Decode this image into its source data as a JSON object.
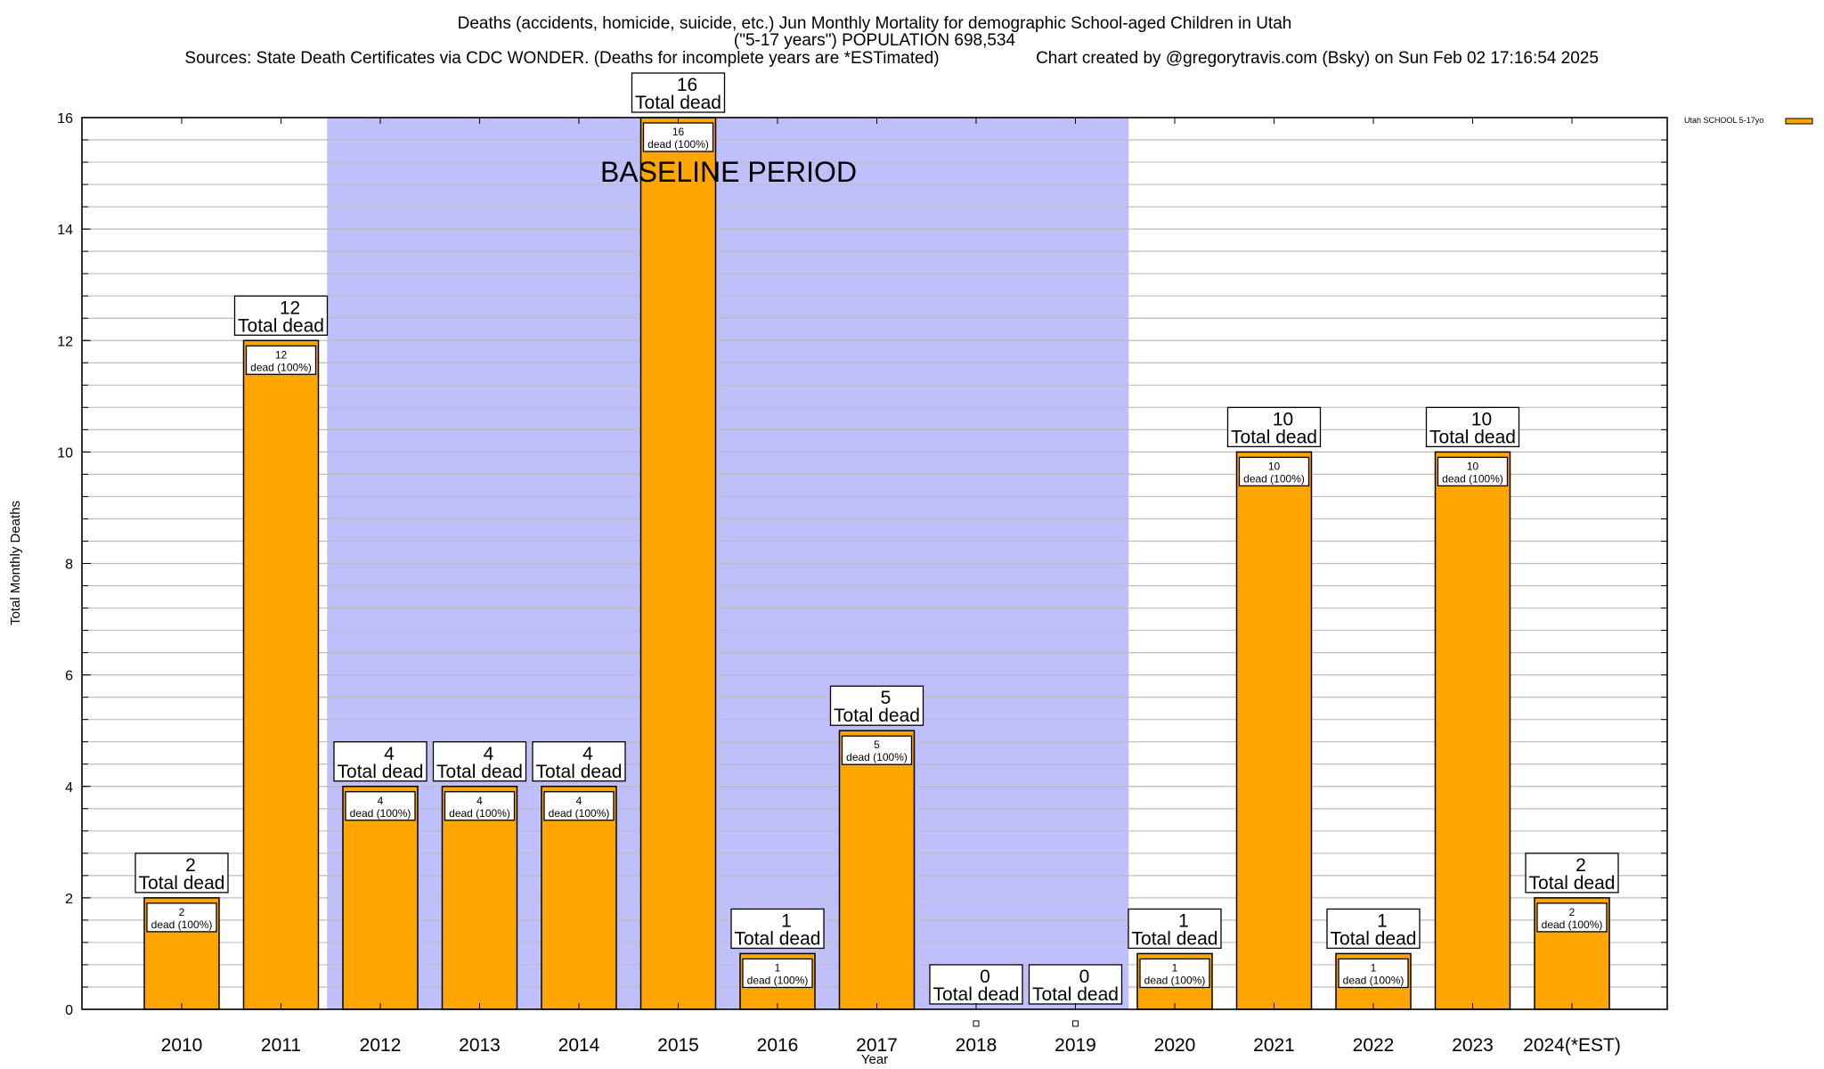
{
  "chart_data": {
    "type": "bar",
    "title_lines": [
      "Deaths (accidents, homicide, suicide, etc.) Jun Monthly Mortality for demographic School-aged Children in Utah",
      "(\"5-17 years\") POPULATION 698,534"
    ],
    "sources": "Sources: State Death Certificates via CDC WONDER. (Deaths for incomplete years are *ESTimated)",
    "credit": "Chart created by @gregorytravis.com (Bsky) on Sun Feb 02 17:16:54 2025",
    "xlabel": "Year",
    "ylabel": "Total Monthly Deaths",
    "ylim": [
      0,
      16
    ],
    "yticks": [
      0,
      2,
      4,
      6,
      8,
      10,
      12,
      14,
      16
    ],
    "minor_grid_step": 0.4,
    "grid": true,
    "categories": [
      "2010",
      "2011",
      "2012",
      "2013",
      "2014",
      "2015",
      "2016",
      "2017",
      "2018",
      "2019",
      "2020",
      "2021",
      "2022",
      "2023",
      "2024(*EST)"
    ],
    "series": [
      {
        "name": "Utah SCHOOL 5-17yo",
        "color": "#ffa500",
        "values": [
          2,
          12,
          4,
          4,
          4,
          16,
          1,
          5,
          0,
          0,
          1,
          10,
          1,
          10,
          2
        ]
      }
    ],
    "total_label_suffix": "Total dead",
    "inner_label_suffix": "dead (100%)",
    "shaded_region": {
      "label": "BASELINE PERIOD",
      "from_category": "2012",
      "to_category": "2019",
      "color": "#bfbffb"
    },
    "legend_position": "top-right"
  }
}
